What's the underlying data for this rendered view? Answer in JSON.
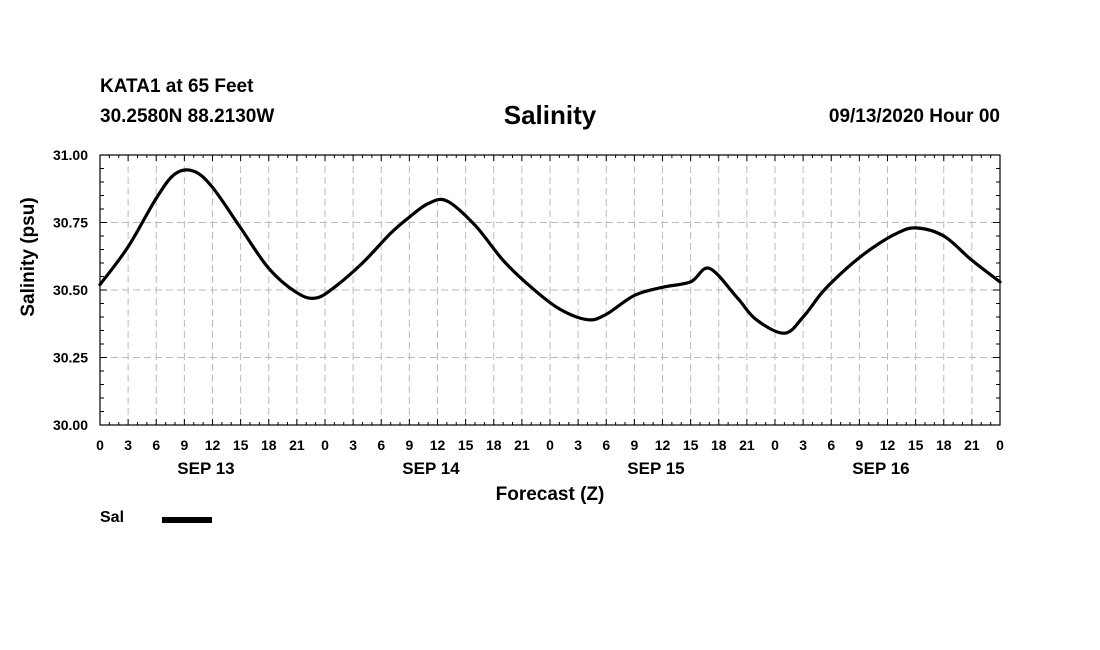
{
  "header": {
    "station": "KATA1 at 65 Feet",
    "coords": "30.2580N 88.2130W",
    "title": "Salinity",
    "datetime": "09/13/2020 Hour 00"
  },
  "legend": {
    "label": "Sal",
    "color": "#000000"
  },
  "chart_data": {
    "type": "line",
    "title": "Salinity",
    "xlabel": "Forecast (Z)",
    "ylabel": "Salinity (psu)",
    "ylim": [
      30.0,
      31.0
    ],
    "yticks": [
      "30.00",
      "30.25",
      "30.50",
      "30.75",
      "31.00"
    ],
    "xlim_hours": [
      0,
      96
    ],
    "x_tick_labels": [
      "0",
      "3",
      "6",
      "9",
      "12",
      "15",
      "18",
      "21",
      "0",
      "3",
      "6",
      "9",
      "12",
      "15",
      "18",
      "21",
      "0",
      "3",
      "6",
      "9",
      "12",
      "15",
      "18",
      "21",
      "0",
      "3",
      "6",
      "9",
      "12",
      "15",
      "18",
      "21",
      "0"
    ],
    "day_labels": [
      "SEP 13",
      "SEP 14",
      "SEP 15",
      "SEP 16"
    ],
    "grid": true,
    "legend_position": "bottom-left",
    "series": [
      {
        "name": "Sal",
        "color": "#000000",
        "x": [
          0,
          3,
          6,
          8,
          10,
          12,
          15,
          18,
          21,
          23,
          25,
          28,
          31,
          33,
          35,
          37,
          40,
          43,
          46,
          49,
          52,
          54,
          57,
          60,
          63,
          65,
          68,
          70,
          73,
          75,
          77,
          79,
          81,
          83,
          85,
          87,
          90,
          93,
          96
        ],
        "y": [
          30.52,
          30.66,
          30.84,
          30.93,
          30.94,
          30.88,
          30.73,
          30.58,
          30.49,
          30.47,
          30.51,
          30.6,
          30.71,
          30.77,
          30.82,
          30.83,
          30.74,
          30.61,
          30.51,
          30.43,
          30.39,
          30.41,
          30.48,
          30.51,
          30.53,
          30.58,
          30.47,
          30.39,
          30.34,
          30.4,
          30.49,
          30.56,
          30.62,
          30.67,
          30.71,
          30.73,
          30.7,
          30.61,
          30.53
        ]
      }
    ]
  }
}
